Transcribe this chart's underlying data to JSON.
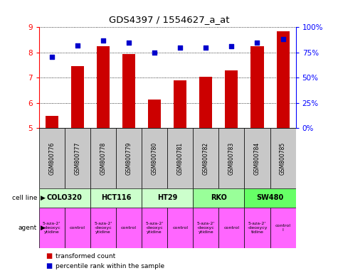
{
  "title": "GDS4397 / 1554627_a_at",
  "samples": [
    "GSM800776",
    "GSM800777",
    "GSM800778",
    "GSM800779",
    "GSM800780",
    "GSM800781",
    "GSM800782",
    "GSM800783",
    "GSM800784",
    "GSM800785"
  ],
  "transformed_count": [
    5.5,
    7.45,
    8.25,
    7.95,
    6.15,
    6.9,
    7.05,
    7.3,
    8.25,
    8.85
  ],
  "percentile_rank": [
    71,
    82,
    87,
    85,
    75,
    80,
    80,
    81,
    85,
    88
  ],
  "bar_color": "#cc0000",
  "dot_color": "#0000cc",
  "ylim_left": [
    5,
    9
  ],
  "ylim_right": [
    0,
    100
  ],
  "yticks_left": [
    5,
    6,
    7,
    8,
    9
  ],
  "yticks_right": [
    0,
    25,
    50,
    75,
    100
  ],
  "ytick_labels_right": [
    "0%",
    "25%",
    "50%",
    "75%",
    "100%"
  ],
  "cell_lines": [
    {
      "name": "COLO320",
      "span": [
        0,
        2
      ],
      "color": "#ccffcc"
    },
    {
      "name": "HCT116",
      "span": [
        2,
        4
      ],
      "color": "#ccffcc"
    },
    {
      "name": "HT29",
      "span": [
        4,
        6
      ],
      "color": "#ccffcc"
    },
    {
      "name": "RKO",
      "span": [
        6,
        8
      ],
      "color": "#99ff99"
    },
    {
      "name": "SW480",
      "span": [
        8,
        10
      ],
      "color": "#66ff66"
    }
  ],
  "agents": [
    {
      "name": "5-aza-2'\n-deoxyc\nytidine",
      "color": "#ff66ff",
      "span": [
        0,
        1
      ]
    },
    {
      "name": "control",
      "color": "#ff66ff",
      "span": [
        1,
        2
      ]
    },
    {
      "name": "5-aza-2'\n-deoxyc\nytidine",
      "color": "#ff66ff",
      "span": [
        2,
        3
      ]
    },
    {
      "name": "control",
      "color": "#ff66ff",
      "span": [
        3,
        4
      ]
    },
    {
      "name": "5-aza-2'\n-deoxyc\nytidine",
      "color": "#ff66ff",
      "span": [
        4,
        5
      ]
    },
    {
      "name": "control",
      "color": "#ff66ff",
      "span": [
        5,
        6
      ]
    },
    {
      "name": "5-aza-2'\n-deoxyc\nytidine",
      "color": "#ff66ff",
      "span": [
        6,
        7
      ]
    },
    {
      "name": "control",
      "color": "#ff66ff",
      "span": [
        7,
        8
      ]
    },
    {
      "name": "5-aza-2'\n-deoxycy\ntidine",
      "color": "#ff66ff",
      "span": [
        8,
        9
      ]
    },
    {
      "name": "control\nl",
      "color": "#ff66ff",
      "span": [
        9,
        10
      ]
    }
  ],
  "legend_bar_label": "transformed count",
  "legend_dot_label": "percentile rank within the sample",
  "xlabel_cell_line": "cell line",
  "xlabel_agent": "agent",
  "sample_bg": "#c8c8c8"
}
